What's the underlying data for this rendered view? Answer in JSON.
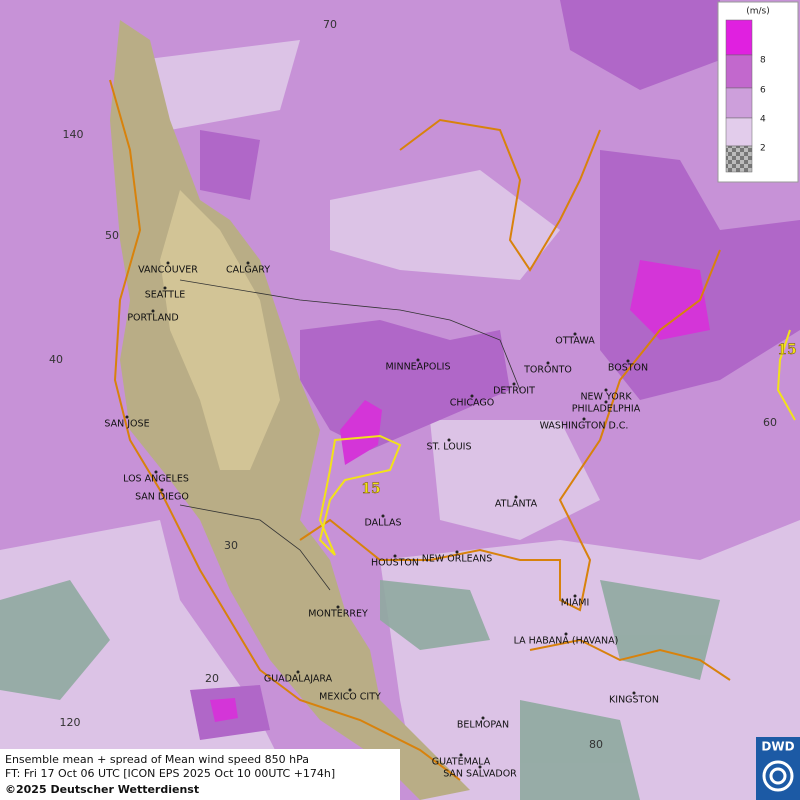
{
  "map": {
    "cities": [
      "VANCOUVER",
      "CALGARY",
      "SEATTLE",
      "PORTLAND",
      "MINNEAPOLIS",
      "TORONTO",
      "OTTAWA",
      "DETROIT",
      "CHICAGO",
      "BOSTON",
      "NEW YORK",
      "PHILADELPHIA",
      "WASHINGTON D.C.",
      "SAN JOSE",
      "ST. LOUIS",
      "LOS ANGELES",
      "SAN DIEGO",
      "DALLAS",
      "ATLANTA",
      "HOUSTON",
      "NEW ORLEANS",
      "MIAMI",
      "MONTERREY",
      "LA HABANA (HAVANA)",
      "GUADALAJARA",
      "MEXICO CITY",
      "KINGSTON",
      "BELMOPAN",
      "GUATEMALA",
      "SAN SALVADOR"
    ],
    "grid_labels": [
      70,
      140,
      50,
      40,
      30,
      20,
      120,
      60,
      80
    ],
    "contour_labels": [
      15,
      15
    ]
  },
  "legend": {
    "unit": "(m/s)",
    "ticks": [
      8,
      6,
      4,
      2
    ]
  },
  "caption": [
    "Ensemble mean + spread of Mean wind speed 850 hPa",
    "FT: Fri 17 Oct 06 UTC [ICON EPS 2025 Oct 10 00UTC +174h]",
    "©2025 Deutscher Wetterdienst"
  ],
  "logo": "DWD"
}
